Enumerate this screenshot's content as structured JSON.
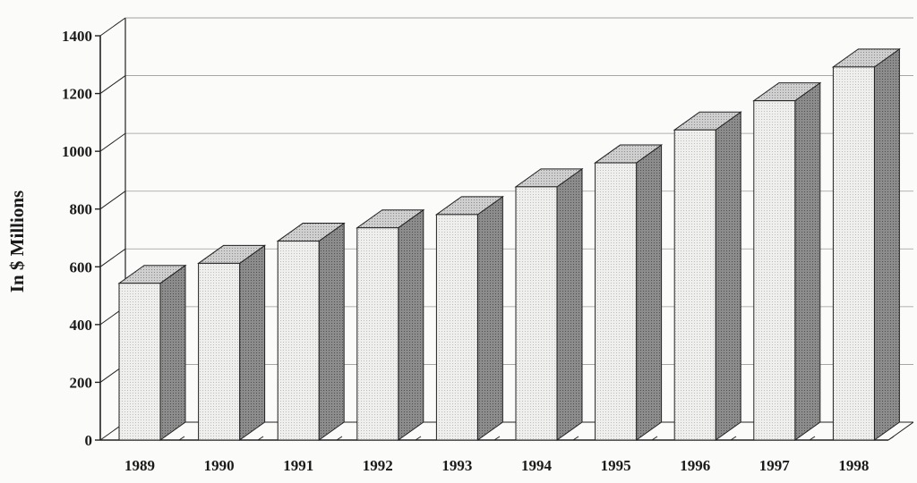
{
  "chart_data": {
    "type": "bar",
    "style": "3d",
    "categories": [
      "1989",
      "1990",
      "1991",
      "1992",
      "1993",
      "1994",
      "1995",
      "1996",
      "1997",
      "1998"
    ],
    "values": [
      543,
      612,
      689,
      735,
      781,
      877,
      960,
      1074,
      1175,
      1292
    ],
    "title": "",
    "xlabel": "",
    "ylabel": "In $ Millions",
    "ylim": [
      0,
      1400
    ],
    "yticks": [
      "0",
      "200",
      "400",
      "600",
      "800",
      "1000",
      "1200",
      "1400"
    ],
    "grid": true,
    "legend": "none"
  },
  "colors": {
    "bar_front": "#ececec",
    "bar_top": "#c4c4c4",
    "bar_side": "#7a7a7a",
    "grid": "#9a9a9a",
    "axis": "#222222"
  }
}
